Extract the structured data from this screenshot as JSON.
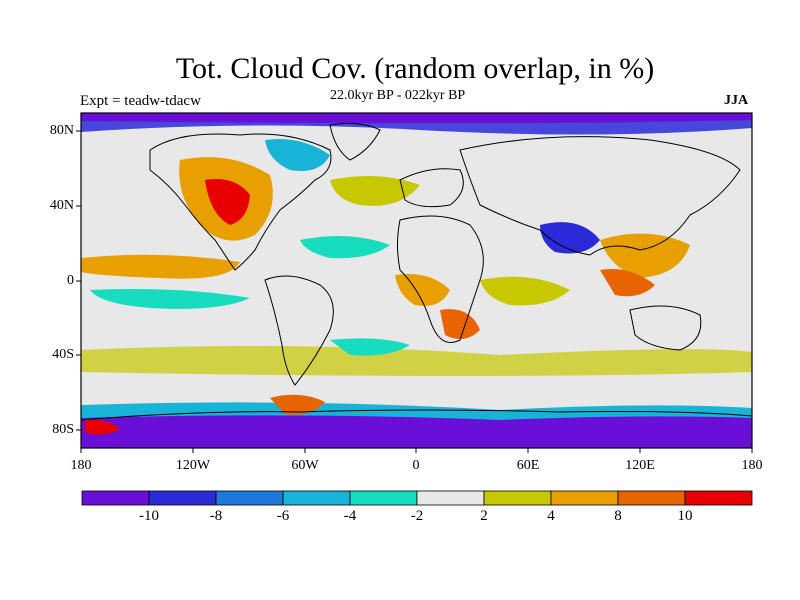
{
  "title": "Tot. Cloud Cov. (random overlap, in %)",
  "experiment_label": "Expt = teadw-tdacw",
  "period_label": "22.0kyr BP - 022kyr BP",
  "season_label": "JJA",
  "lat_labels": [
    "80N",
    "40N",
    "0",
    "40S",
    "80S"
  ],
  "lon_labels": [
    "180",
    "120W",
    "60W",
    "0",
    "60E",
    "120E",
    "180"
  ],
  "colorbar": {
    "colors": [
      "#6a0fd8",
      "#2a2ad8",
      "#1e78d8",
      "#18b4d8",
      "#18dcc0",
      "#e8e8e8",
      "#c8c800",
      "#e8a000",
      "#e86400",
      "#e80000"
    ],
    "tick_labels": [
      "-10",
      "-8",
      "-6",
      "-4",
      "-2",
      "2",
      "4",
      "8",
      "10"
    ]
  },
  "colors": {
    "coast": "#000000",
    "frame": "#000000",
    "neutral": "#e8e8e8"
  }
}
